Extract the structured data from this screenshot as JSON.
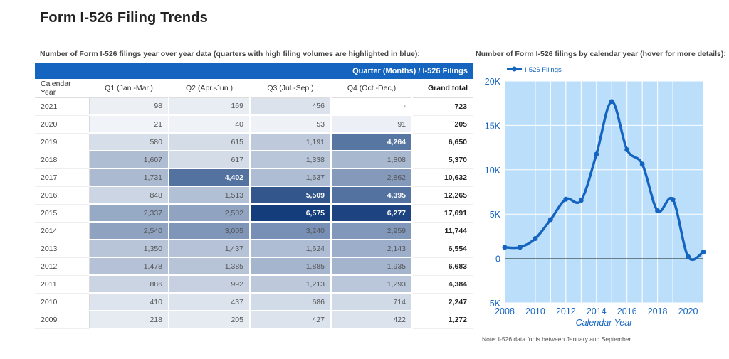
{
  "title": "Form I-526 Filing Trends",
  "table_caption": "Number of Form I-526 filings year over year data (quarters with high filing volumes are highlighted in blue):",
  "chart_caption": "Number of Form I-526 filings by calendar year (hover for more details):",
  "note": "Note: I-526 data for is between January and September.",
  "table": {
    "banner": "Quarter (Months) / I-526 Filings",
    "headers": [
      "Calendar Year",
      "Q1 (Jan.-Mar.)",
      "Q2 (Apr.-Jun.)",
      "Q3 (Jul.-Sep.)",
      "Q4 (Oct.-Dec,)",
      "Grand total"
    ],
    "rows": [
      {
        "year": "2021",
        "q": [
          "98",
          "169",
          "456",
          "-"
        ],
        "total": "723"
      },
      {
        "year": "2020",
        "q": [
          "21",
          "40",
          "53",
          "91"
        ],
        "total": "205"
      },
      {
        "year": "2019",
        "q": [
          "580",
          "615",
          "1,191",
          "4,264"
        ],
        "total": "6,650"
      },
      {
        "year": "2018",
        "q": [
          "1,607",
          "617",
          "1,338",
          "1,808"
        ],
        "total": "5,370"
      },
      {
        "year": "2017",
        "q": [
          "1,731",
          "4,402",
          "1,637",
          "2,862"
        ],
        "total": "10,632"
      },
      {
        "year": "2016",
        "q": [
          "848",
          "1,513",
          "5,509",
          "4,395"
        ],
        "total": "12,265"
      },
      {
        "year": "2015",
        "q": [
          "2,337",
          "2,502",
          "6,575",
          "6,277"
        ],
        "total": "17,691"
      },
      {
        "year": "2014",
        "q": [
          "2,540",
          "3,005",
          "3,240",
          "2,959"
        ],
        "total": "11,744"
      },
      {
        "year": "2013",
        "q": [
          "1,350",
          "1,437",
          "1,624",
          "2,143"
        ],
        "total": "6,554"
      },
      {
        "year": "2012",
        "q": [
          "1,478",
          "1,385",
          "1,885",
          "1,935"
        ],
        "total": "6,683"
      },
      {
        "year": "2011",
        "q": [
          "886",
          "992",
          "1,213",
          "1,293"
        ],
        "total": "4,384"
      },
      {
        "year": "2010",
        "q": [
          "410",
          "437",
          "686",
          "714"
        ],
        "total": "2,247"
      },
      {
        "year": "2009",
        "q": [
          "218",
          "205",
          "427",
          "422"
        ],
        "total": "1,272"
      }
    ]
  },
  "colors": {
    "banner": "#1565c0",
    "plot_bg": "#bbdefb",
    "line": "#1565c0",
    "heat_low": "#f2f5f9",
    "heat_high": "#143d7c",
    "axis_text": "#1565c0"
  },
  "chart_data": {
    "type": "line",
    "legend": [
      "I-526 Filings"
    ],
    "legend_position": "top-left",
    "series": [
      {
        "name": "I-526 Filings",
        "x": [
          2008,
          2009,
          2010,
          2011,
          2012,
          2013,
          2014,
          2015,
          2016,
          2017,
          2018,
          2019,
          2020,
          2021
        ],
        "values": [
          1258,
          1272,
          2247,
          4384,
          6683,
          6554,
          11744,
          17691,
          12265,
          10632,
          5370,
          6650,
          205,
          723
        ]
      }
    ],
    "xlabel": "Calendar Year",
    "ylabel": "",
    "xlim": [
      2008,
      2021
    ],
    "ylim": [
      -5000,
      20000
    ],
    "x_ticks": [
      2008,
      2010,
      2012,
      2014,
      2016,
      2018,
      2020
    ],
    "y_ticks": [
      -5000,
      0,
      5000,
      10000,
      15000,
      20000
    ],
    "y_tick_labels": [
      "-5K",
      "0",
      "5K",
      "10K",
      "15K",
      "20K"
    ],
    "grid": true
  }
}
